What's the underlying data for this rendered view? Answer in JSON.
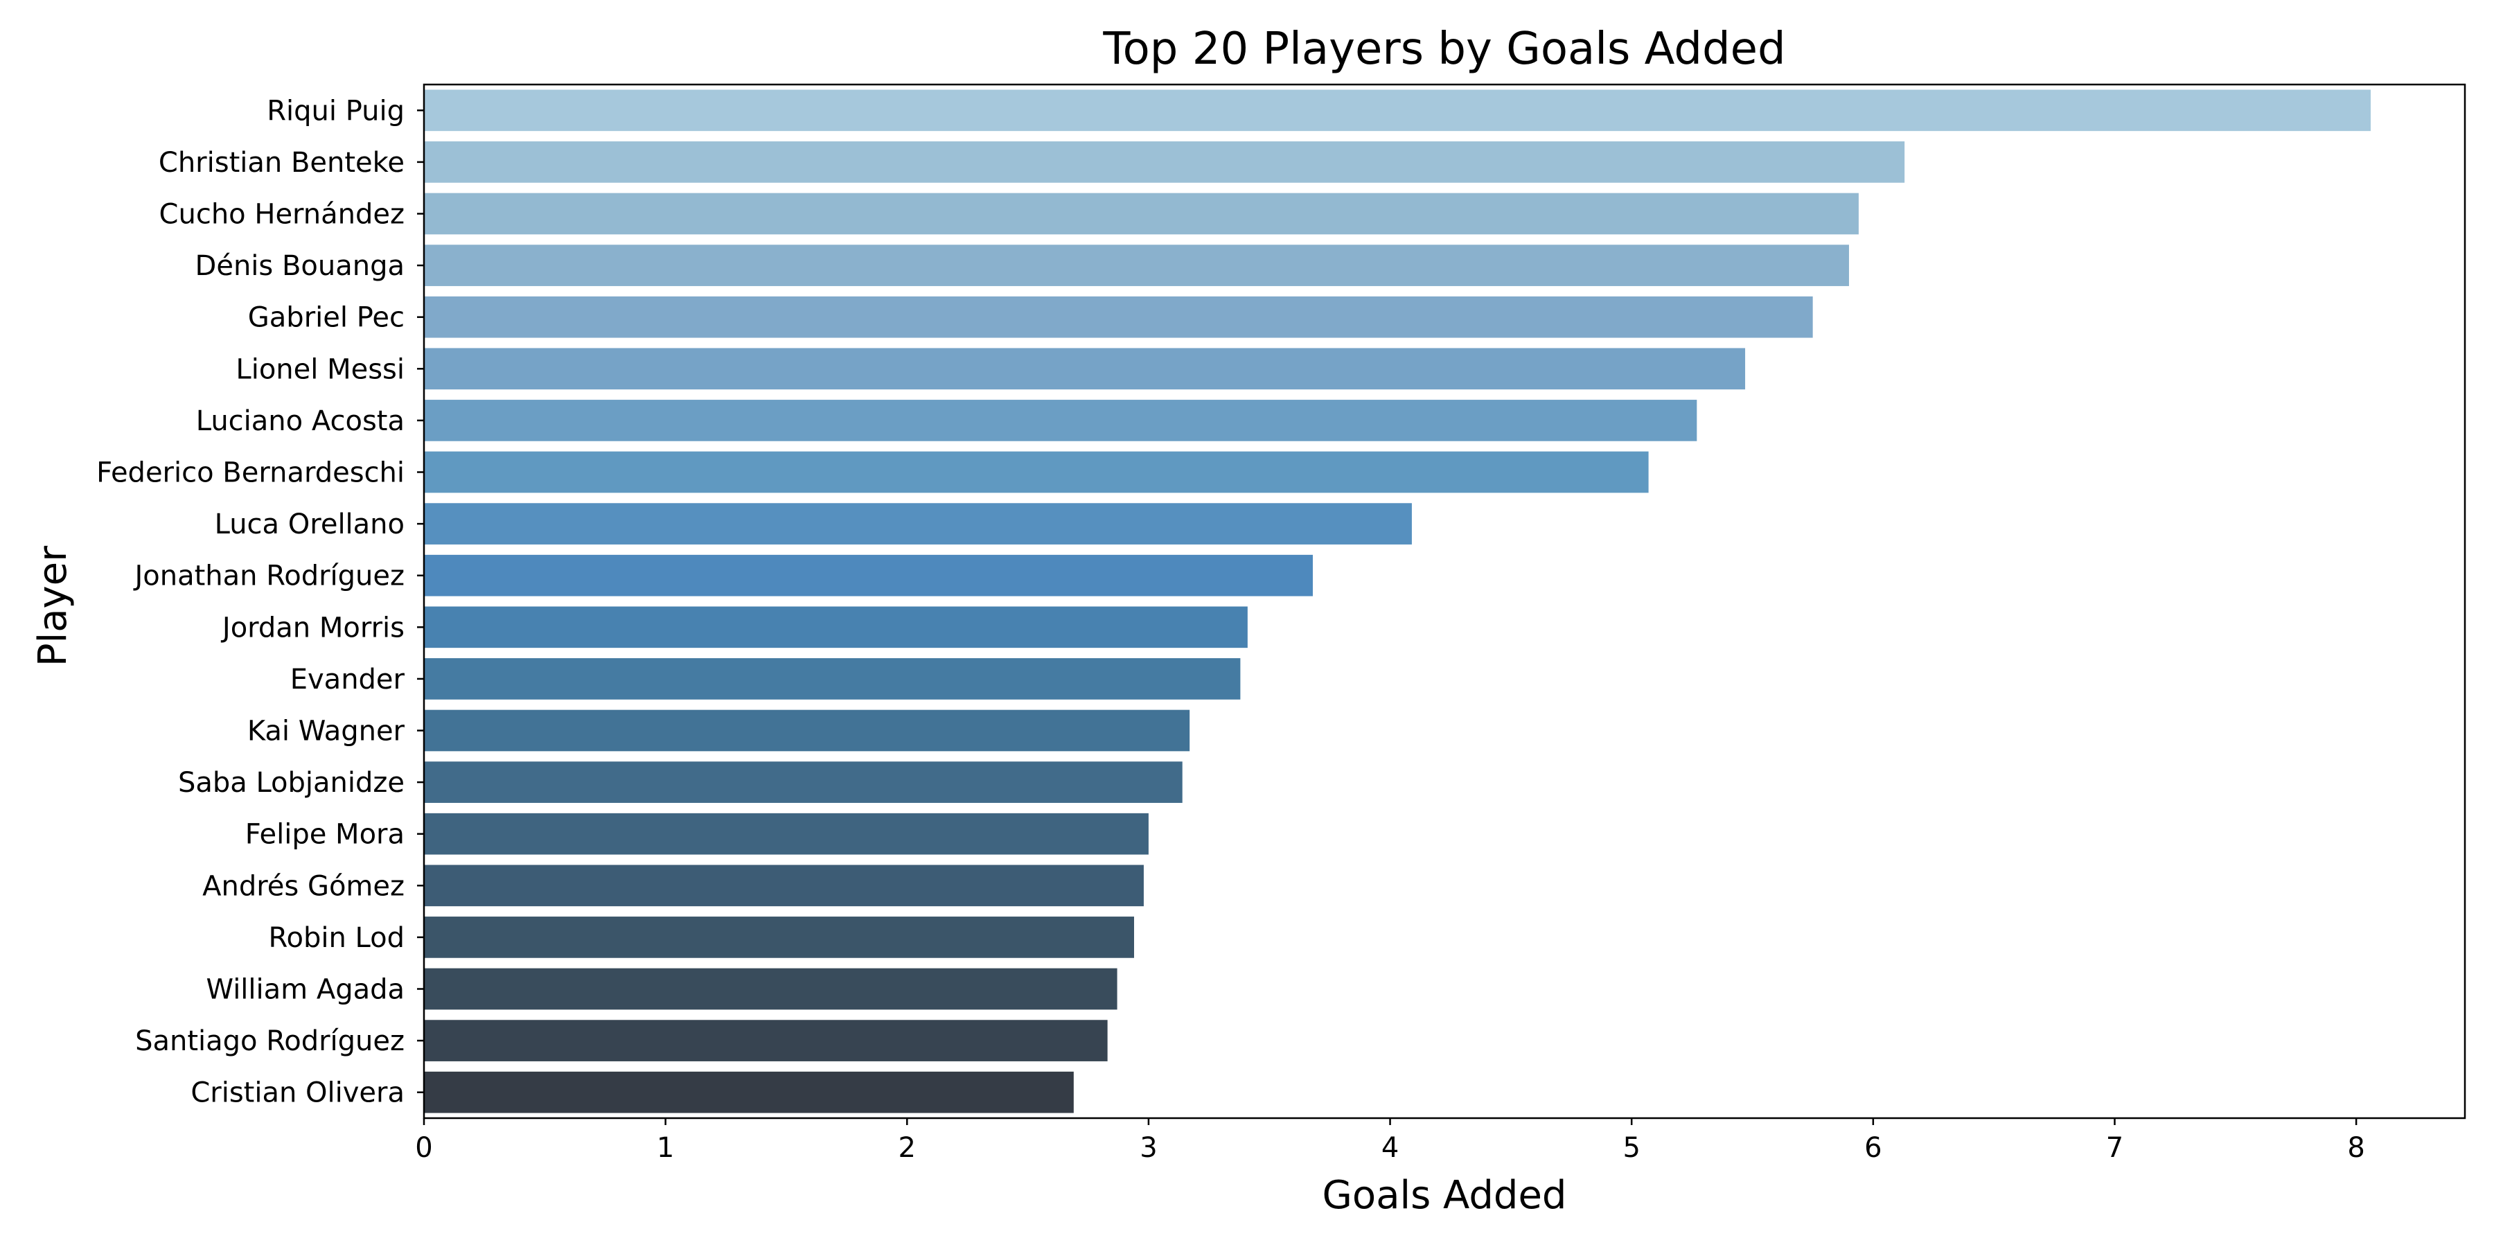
{
  "chart_data": {
    "type": "bar",
    "orientation": "horizontal",
    "title": "Top 20 Players by Goals Added",
    "xlabel": "Goals Added",
    "ylabel": "Player",
    "xlim": [
      0,
      8.45
    ],
    "xticks": [
      0,
      1,
      2,
      3,
      4,
      5,
      6,
      7,
      8
    ],
    "grid": false,
    "legend": "none",
    "palette": "Blues_d",
    "categories": [
      "Riqui Puig",
      "Christian Benteke",
      "Cucho Hernández",
      "Dénis Bouanga",
      "Gabriel Pec",
      "Lionel Messi",
      "Luciano Acosta",
      "Federico Bernardeschi",
      "Luca Orellano",
      "Jonathan Rodríguez",
      "Jordan Morris",
      "Evander",
      "Kai Wagner",
      "Saba Lobjanidze",
      "Felipe Mora",
      "Andrés Gómez",
      "Robin Lod",
      "William Agada",
      "Santiago Rodríguez",
      "Cristian Olivera"
    ],
    "values": [
      8.06,
      6.13,
      5.94,
      5.9,
      5.75,
      5.47,
      5.27,
      5.07,
      4.09,
      3.68,
      3.41,
      3.38,
      3.17,
      3.14,
      3.0,
      2.98,
      2.94,
      2.87,
      2.83,
      2.69
    ],
    "colors": [
      "#a6c8dc",
      "#9cc0d6",
      "#93b9d1",
      "#8ab1cd",
      "#80a9ca",
      "#76a3c7",
      "#6b9ec4",
      "#6099c1",
      "#5690bf",
      "#4e89bd",
      "#4882b0",
      "#457ba2",
      "#427396",
      "#416b8a",
      "#3f6480",
      "#3d5c75",
      "#3b5569",
      "#394c5c",
      "#374451",
      "#353c46"
    ]
  }
}
